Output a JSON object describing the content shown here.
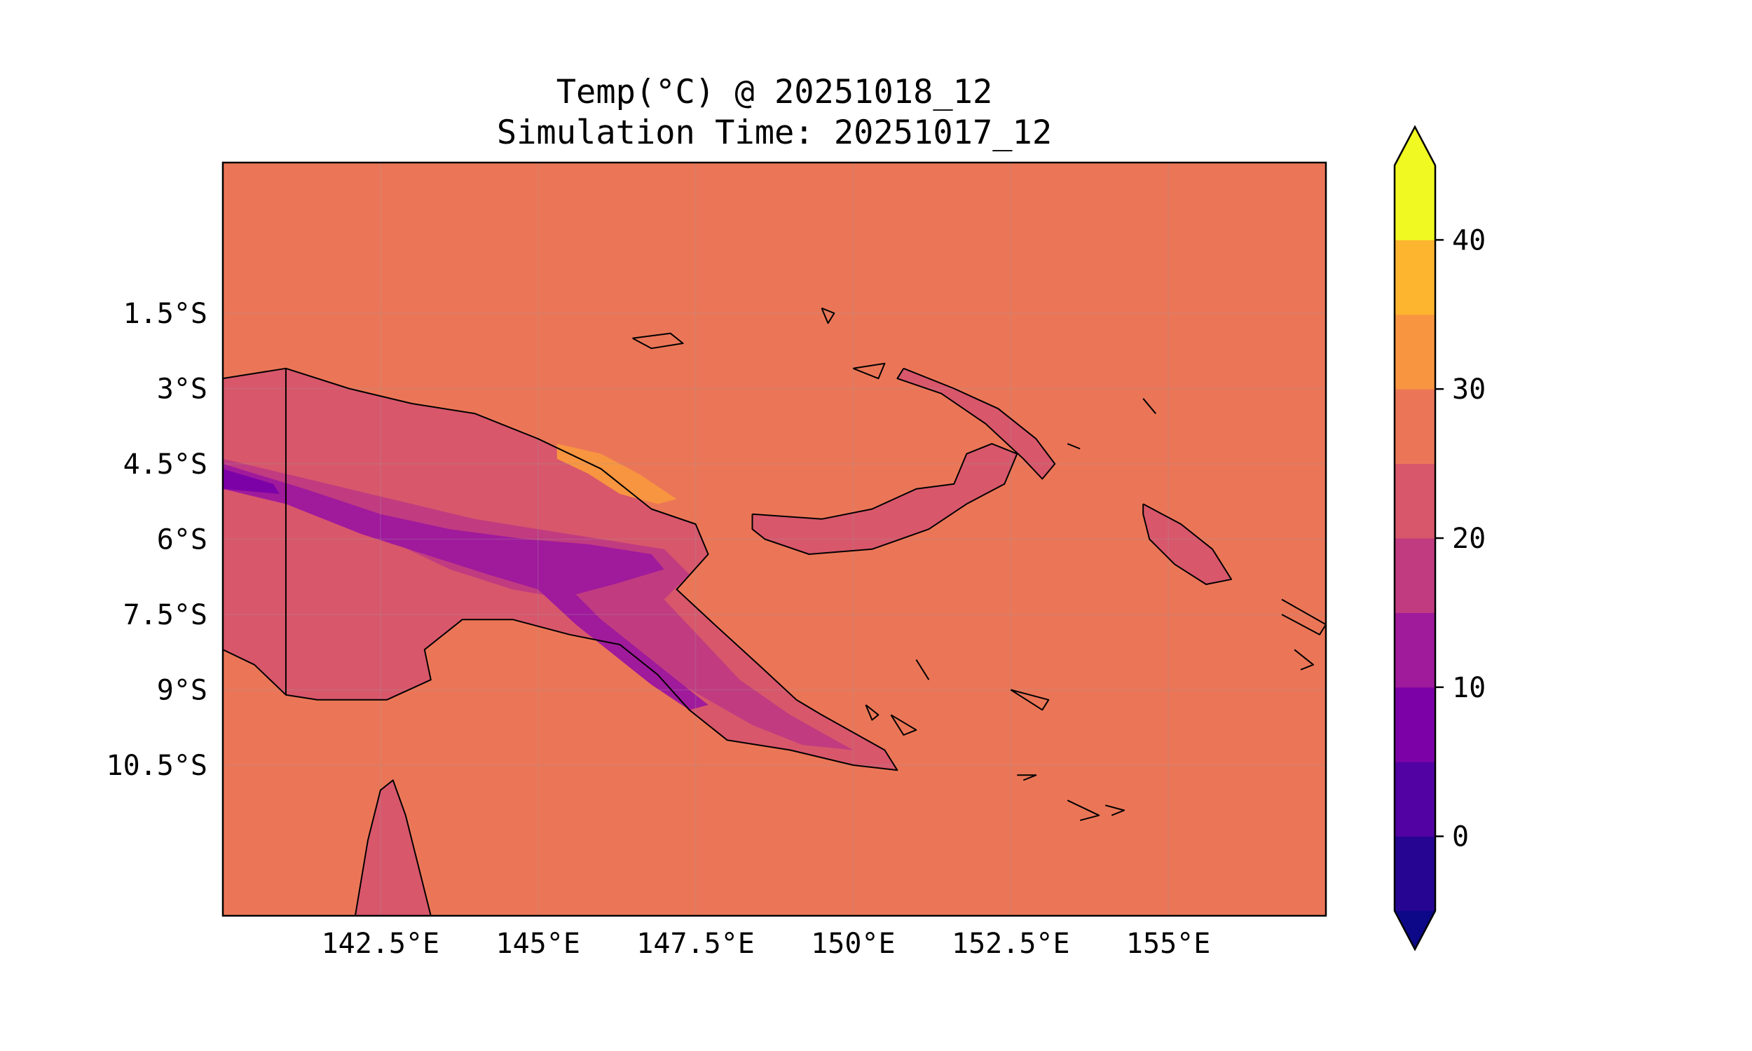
{
  "title": {
    "line1": "Temp(°C) @ 20251018_12",
    "line2": "Simulation Time: 20251017_12"
  },
  "map": {
    "extent_lon": [
      140,
      157.5
    ],
    "extent_lat": [
      -13.5,
      1.5
    ],
    "grid": true,
    "xticks": [
      {
        "value": 142.5,
        "label": "142.5°E"
      },
      {
        "value": 145.0,
        "label": "145°E"
      },
      {
        "value": 147.5,
        "label": "147.5°E"
      },
      {
        "value": 150.0,
        "label": "150°E"
      },
      {
        "value": 152.5,
        "label": "152.5°E"
      },
      {
        "value": 155.0,
        "label": "155°E"
      }
    ],
    "yticks": [
      {
        "value": -1.5,
        "label": "1.5°S"
      },
      {
        "value": -3.0,
        "label": "3°S"
      },
      {
        "value": -4.5,
        "label": "4.5°S"
      },
      {
        "value": -6.0,
        "label": "6°S"
      },
      {
        "value": -7.5,
        "label": "7.5°S"
      },
      {
        "value": -9.0,
        "label": "9°S"
      },
      {
        "value": -10.5,
        "label": "10.5°S"
      }
    ],
    "ocean_color": "#eb7657",
    "border_lon": 141.0
  },
  "colorbar": {
    "range": [
      -5,
      45
    ],
    "extend": "both",
    "levels": [
      {
        "from": -5,
        "to": 0,
        "color": "#250591"
      },
      {
        "from": 0,
        "to": 5,
        "color": "#5202a3"
      },
      {
        "from": 5,
        "to": 10,
        "color": "#7c02a8"
      },
      {
        "from": 10,
        "to": 15,
        "color": "#a01a9c"
      },
      {
        "from": 15,
        "to": 20,
        "color": "#c13b81"
      },
      {
        "from": 20,
        "to": 25,
        "color": "#d8576b"
      },
      {
        "from": 25,
        "to": 30,
        "color": "#eb7657"
      },
      {
        "from": 30,
        "to": 35,
        "color": "#f89540"
      },
      {
        "from": 35,
        "to": 40,
        "color": "#fdb42f"
      },
      {
        "from": 40,
        "to": 45,
        "color": "#f0f921"
      }
    ],
    "under_color": "#0d0887",
    "over_color": "#f0f921",
    "ticks": [
      {
        "value": 0,
        "label": "0"
      },
      {
        "value": 10,
        "label": "10"
      },
      {
        "value": 20,
        "label": "20"
      },
      {
        "value": 30,
        "label": "30"
      },
      {
        "value": 40,
        "label": "40"
      }
    ]
  },
  "regions": [
    {
      "name": "new-guinea-island",
      "color": "#d8576b",
      "points": [
        [
          140,
          -2.8
        ],
        [
          141,
          -2.6
        ],
        [
          142,
          -3.0
        ],
        [
          143,
          -3.3
        ],
        [
          144,
          -3.5
        ],
        [
          145,
          -4.0
        ],
        [
          146,
          -4.6
        ],
        [
          146.8,
          -5.4
        ],
        [
          147.5,
          -5.7
        ],
        [
          147.7,
          -6.3
        ],
        [
          147.2,
          -7.0
        ],
        [
          147.8,
          -7.7
        ],
        [
          148.5,
          -8.5
        ],
        [
          149.1,
          -9.2
        ],
        [
          149.5,
          -9.5
        ],
        [
          150.5,
          -10.2
        ],
        [
          150.7,
          -10.6
        ],
        [
          150,
          -10.5
        ],
        [
          149,
          -10.2
        ],
        [
          148,
          -10.0
        ],
        [
          147.4,
          -9.4
        ],
        [
          146.9,
          -8.7
        ],
        [
          146.3,
          -8.1
        ],
        [
          145.5,
          -7.9
        ],
        [
          144.6,
          -7.6
        ],
        [
          143.8,
          -7.6
        ],
        [
          143.2,
          -8.2
        ],
        [
          143.3,
          -8.8
        ],
        [
          142.6,
          -9.2
        ],
        [
          141.5,
          -9.2
        ],
        [
          141,
          -9.1
        ],
        [
          140.5,
          -8.5
        ],
        [
          140,
          -8.2
        ]
      ]
    },
    {
      "name": "new-guinea-highlands",
      "color": "#c13b81",
      "points": [
        [
          140,
          -4.4
        ],
        [
          141,
          -4.7
        ],
        [
          142,
          -5.0
        ],
        [
          143,
          -5.3
        ],
        [
          144,
          -5.6
        ],
        [
          145,
          -5.8
        ],
        [
          146,
          -6.0
        ],
        [
          147,
          -6.2
        ],
        [
          147.4,
          -6.7
        ],
        [
          147.0,
          -7.2
        ],
        [
          147.6,
          -8.0
        ],
        [
          148.2,
          -8.8
        ],
        [
          149.0,
          -9.5
        ],
        [
          150.0,
          -10.2
        ],
        [
          149.2,
          -10.1
        ],
        [
          148.4,
          -9.7
        ],
        [
          147.7,
          -9.2
        ],
        [
          147.0,
          -8.7
        ],
        [
          146.3,
          -7.9
        ],
        [
          145.5,
          -7.2
        ],
        [
          144.6,
          -7.0
        ],
        [
          143.6,
          -6.6
        ],
        [
          142.6,
          -6.0
        ],
        [
          141.5,
          -5.4
        ],
        [
          140.5,
          -5.0
        ],
        [
          140,
          -4.9
        ]
      ]
    },
    {
      "name": "highland-peaks",
      "color": "#a01a9c",
      "points": [
        [
          140,
          -4.5
        ],
        [
          141.3,
          -5.0
        ],
        [
          142.5,
          -5.5
        ],
        [
          143.6,
          -5.8
        ],
        [
          144.8,
          -6.0
        ],
        [
          145.8,
          -6.1
        ],
        [
          146.8,
          -6.3
        ],
        [
          147.0,
          -6.6
        ],
        [
          146.2,
          -6.9
        ],
        [
          145.6,
          -7.1
        ],
        [
          146.0,
          -7.6
        ],
        [
          146.6,
          -8.2
        ],
        [
          147.2,
          -8.8
        ],
        [
          147.7,
          -9.3
        ],
        [
          147.4,
          -9.4
        ],
        [
          146.8,
          -8.9
        ],
        [
          146.2,
          -8.3
        ],
        [
          145.6,
          -7.7
        ],
        [
          145.0,
          -7.0
        ],
        [
          144.2,
          -6.7
        ],
        [
          143.2,
          -6.3
        ],
        [
          142.2,
          -5.9
        ],
        [
          141.0,
          -5.3
        ],
        [
          140,
          -5.0
        ]
      ]
    },
    {
      "name": "coldest-peaks",
      "color": "#7c02a8",
      "points": [
        [
          140,
          -4.6
        ],
        [
          140.8,
          -4.9
        ],
        [
          140.9,
          -5.1
        ],
        [
          140,
          -5.0
        ]
      ]
    },
    {
      "name": "warm-coast-north",
      "color": "#f89540",
      "points": [
        [
          145.3,
          -4.1
        ],
        [
          146.0,
          -4.3
        ],
        [
          146.6,
          -4.7
        ],
        [
          147.2,
          -5.2
        ],
        [
          146.9,
          -5.3
        ],
        [
          146.3,
          -5.1
        ],
        [
          145.8,
          -4.7
        ],
        [
          145.3,
          -4.4
        ]
      ]
    },
    {
      "name": "new-britain",
      "color": "#d8576b",
      "points": [
        [
          148.4,
          -5.5
        ],
        [
          149.5,
          -5.6
        ],
        [
          150.3,
          -5.4
        ],
        [
          151.0,
          -5.0
        ],
        [
          151.6,
          -4.9
        ],
        [
          151.8,
          -4.3
        ],
        [
          152.2,
          -4.1
        ],
        [
          152.6,
          -4.3
        ],
        [
          152.4,
          -4.9
        ],
        [
          151.8,
          -5.3
        ],
        [
          151.2,
          -5.8
        ],
        [
          150.3,
          -6.2
        ],
        [
          149.3,
          -6.3
        ],
        [
          148.6,
          -6.0
        ],
        [
          148.4,
          -5.8
        ]
      ]
    },
    {
      "name": "new-ireland",
      "color": "#d8576b",
      "points": [
        [
          150.8,
          -2.6
        ],
        [
          151.6,
          -3.0
        ],
        [
          152.3,
          -3.4
        ],
        [
          152.9,
          -4.0
        ],
        [
          153.2,
          -4.5
        ],
        [
          153.0,
          -4.8
        ],
        [
          152.7,
          -4.4
        ],
        [
          152.1,
          -3.7
        ],
        [
          151.4,
          -3.1
        ],
        [
          150.7,
          -2.8
        ]
      ]
    },
    {
      "name": "bougainville",
      "color": "#d8576b",
      "points": [
        [
          154.6,
          -5.3
        ],
        [
          155.2,
          -5.7
        ],
        [
          155.7,
          -6.2
        ],
        [
          156.0,
          -6.8
        ],
        [
          155.6,
          -6.9
        ],
        [
          155.1,
          -6.5
        ],
        [
          154.7,
          -6.0
        ],
        [
          154.6,
          -5.5
        ]
      ]
    },
    {
      "name": "cape-york",
      "color": "#d8576b",
      "points": [
        [
          142.1,
          -13.5
        ],
        [
          142.3,
          -12.0
        ],
        [
          142.5,
          -11.0
        ],
        [
          142.7,
          -10.8
        ],
        [
          142.9,
          -11.5
        ],
        [
          143.1,
          -12.5
        ],
        [
          143.3,
          -13.5
        ]
      ]
    }
  ],
  "coastlines": [
    [
      [
        140,
        -2.8
      ],
      [
        141,
        -2.6
      ],
      [
        142,
        -3.0
      ],
      [
        143,
        -3.3
      ],
      [
        144,
        -3.5
      ],
      [
        145,
        -4.0
      ],
      [
        146,
        -4.6
      ],
      [
        146.8,
        -5.4
      ],
      [
        147.5,
        -5.7
      ],
      [
        147.7,
        -6.3
      ],
      [
        147.2,
        -7.0
      ],
      [
        147.8,
        -7.7
      ],
      [
        148.5,
        -8.5
      ],
      [
        149.1,
        -9.2
      ],
      [
        149.5,
        -9.5
      ],
      [
        150.5,
        -10.2
      ],
      [
        150.7,
        -10.6
      ],
      [
        150,
        -10.5
      ],
      [
        149,
        -10.2
      ],
      [
        148,
        -10.0
      ],
      [
        147.4,
        -9.4
      ],
      [
        146.9,
        -8.7
      ],
      [
        146.3,
        -8.1
      ],
      [
        145.5,
        -7.9
      ],
      [
        144.6,
        -7.6
      ],
      [
        143.8,
        -7.6
      ],
      [
        143.2,
        -8.2
      ],
      [
        143.3,
        -8.8
      ],
      [
        142.6,
        -9.2
      ],
      [
        141.5,
        -9.2
      ],
      [
        141,
        -9.1
      ],
      [
        140.5,
        -8.5
      ],
      [
        140,
        -8.2
      ]
    ],
    [
      [
        148.4,
        -5.5
      ],
      [
        149.5,
        -5.6
      ],
      [
        150.3,
        -5.4
      ],
      [
        151.0,
        -5.0
      ],
      [
        151.6,
        -4.9
      ],
      [
        151.8,
        -4.3
      ],
      [
        152.2,
        -4.1
      ],
      [
        152.6,
        -4.3
      ],
      [
        152.4,
        -4.9
      ],
      [
        151.8,
        -5.3
      ],
      [
        151.2,
        -5.8
      ],
      [
        150.3,
        -6.2
      ],
      [
        149.3,
        -6.3
      ],
      [
        148.6,
        -6.0
      ],
      [
        148.4,
        -5.8
      ],
      [
        148.4,
        -5.5
      ]
    ],
    [
      [
        150.8,
        -2.6
      ],
      [
        151.6,
        -3.0
      ],
      [
        152.3,
        -3.4
      ],
      [
        152.9,
        -4.0
      ],
      [
        153.2,
        -4.5
      ],
      [
        153.0,
        -4.8
      ],
      [
        152.7,
        -4.4
      ],
      [
        152.1,
        -3.7
      ],
      [
        151.4,
        -3.1
      ],
      [
        150.7,
        -2.8
      ],
      [
        150.8,
        -2.6
      ]
    ],
    [
      [
        154.6,
        -5.3
      ],
      [
        155.2,
        -5.7
      ],
      [
        155.7,
        -6.2
      ],
      [
        156.0,
        -6.8
      ],
      [
        155.6,
        -6.9
      ],
      [
        155.1,
        -6.5
      ],
      [
        154.7,
        -6.0
      ],
      [
        154.6,
        -5.5
      ],
      [
        154.6,
        -5.3
      ]
    ],
    [
      [
        142.1,
        -13.5
      ],
      [
        142.3,
        -12.0
      ],
      [
        142.5,
        -11.0
      ],
      [
        142.7,
        -10.8
      ],
      [
        142.9,
        -11.5
      ],
      [
        143.1,
        -12.5
      ],
      [
        143.3,
        -13.5
      ]
    ],
    [
      [
        146.5,
        -2.0
      ],
      [
        147.1,
        -1.9
      ],
      [
        147.3,
        -2.1
      ],
      [
        146.8,
        -2.2
      ],
      [
        146.5,
        -2.0
      ]
    ],
    [
      [
        149.5,
        -1.4
      ],
      [
        149.7,
        -1.5
      ],
      [
        149.6,
        -1.7
      ],
      [
        149.5,
        -1.4
      ]
    ],
    [
      [
        150.0,
        -2.6
      ],
      [
        150.5,
        -2.5
      ],
      [
        150.4,
        -2.8
      ],
      [
        150.0,
        -2.6
      ]
    ],
    [
      [
        156.8,
        -7.2
      ],
      [
        157.5,
        -7.7
      ],
      [
        157.4,
        -7.9
      ],
      [
        156.8,
        -7.5
      ]
    ],
    [
      [
        157.0,
        -8.2
      ],
      [
        157.3,
        -8.5
      ],
      [
        157.1,
        -8.6
      ]
    ],
    [
      [
        150.2,
        -9.3
      ],
      [
        150.4,
        -9.5
      ],
      [
        150.3,
        -9.6
      ],
      [
        150.2,
        -9.3
      ]
    ],
    [
      [
        150.6,
        -9.5
      ],
      [
        151.0,
        -9.8
      ],
      [
        150.8,
        -9.9
      ],
      [
        150.6,
        -9.5
      ]
    ],
    [
      [
        152.5,
        -9.0
      ],
      [
        153.1,
        -9.2
      ],
      [
        153.0,
        -9.4
      ],
      [
        152.5,
        -9.0
      ]
    ],
    [
      [
        152.6,
        -10.7
      ],
      [
        152.9,
        -10.7
      ],
      [
        152.7,
        -10.8
      ]
    ],
    [
      [
        153.4,
        -11.2
      ],
      [
        153.9,
        -11.5
      ],
      [
        153.6,
        -11.6
      ]
    ],
    [
      [
        154.0,
        -11.3
      ],
      [
        154.3,
        -11.4
      ],
      [
        154.1,
        -11.5
      ]
    ],
    [
      [
        154.6,
        -3.2
      ],
      [
        154.8,
        -3.5
      ]
    ],
    [
      [
        153.4,
        -4.1
      ],
      [
        153.6,
        -4.2
      ]
    ],
    [
      [
        151.0,
        -8.4
      ],
      [
        151.2,
        -8.8
      ]
    ]
  ]
}
